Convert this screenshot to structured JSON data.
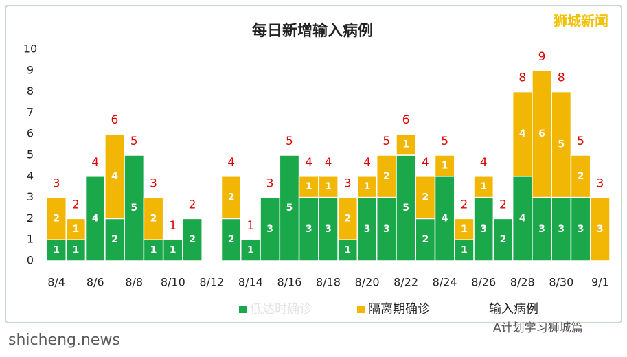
{
  "chart_data": {
    "type": "bar",
    "title": "每日新增输入病例",
    "categories": [
      "8/4",
      null,
      "8/6",
      null,
      "8/8",
      null,
      "8/10",
      null,
      "8/12",
      null,
      "8/14",
      null,
      "8/16",
      null,
      "8/18",
      null,
      "8/20",
      null,
      "8/22",
      null,
      "8/24",
      null,
      "8/26",
      null,
      "8/28",
      null,
      "8/30",
      null,
      "9/1"
    ],
    "series": [
      {
        "name": "低达时确诊",
        "color": "#1aa84a",
        "values": [
          1,
          1,
          4,
          2,
          5,
          1,
          1,
          2,
          0,
          2,
          1,
          3,
          5,
          3,
          3,
          1,
          3,
          3,
          5,
          2,
          4,
          1,
          3,
          2,
          4,
          3,
          3,
          3,
          0
        ]
      },
      {
        "name": "隔离期确诊",
        "color": "#f2b705",
        "values": [
          2,
          1,
          0,
          4,
          0,
          2,
          0,
          0,
          0,
          2,
          0,
          0,
          0,
          1,
          1,
          2,
          1,
          2,
          1,
          2,
          1,
          1,
          1,
          0,
          4,
          6,
          5,
          2,
          3
        ]
      }
    ],
    "totals": {
      "name": "输入病例",
      "color": "#e00000",
      "values": [
        3,
        2,
        4,
        6,
        5,
        3,
        1,
        2,
        null,
        4,
        1,
        3,
        5,
        4,
        4,
        3,
        4,
        5,
        6,
        4,
        5,
        2,
        4,
        2,
        8,
        9,
        8,
        5,
        3
      ]
    },
    "ylim": [
      0,
      10
    ],
    "yticks": [
      0,
      1,
      2,
      3,
      4,
      5,
      6,
      7,
      8,
      9,
      10
    ],
    "grid": false,
    "watermarks": [
      "狮城新闻",
      "shicheng.news",
      "A计划学习狮城篇"
    ]
  }
}
